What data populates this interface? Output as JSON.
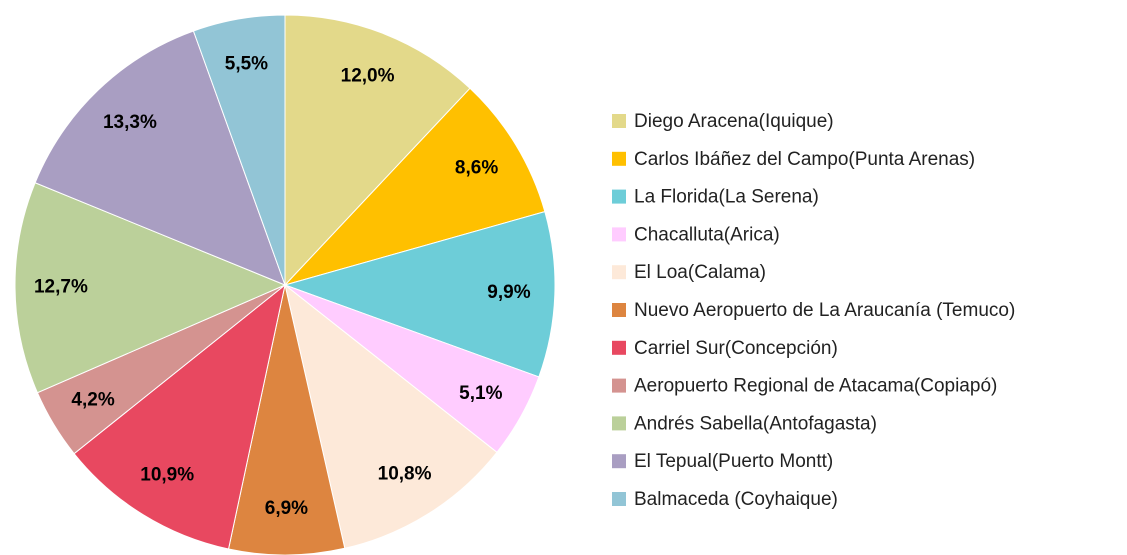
{
  "chart_data": {
    "type": "pie",
    "categories": [
      "Diego Aracena(Iquique)",
      "Carlos Ibáñez del Campo(Punta Arenas)",
      "La Florida(La Serena)",
      "Chacalluta(Arica)",
      "El Loa(Calama)",
      "Nuevo Aeropuerto de La Araucanía (Temuco)",
      "Carriel Sur(Concepción)",
      "Aeropuerto Regional de Atacama(Copiapó)",
      "Andrés Sabella(Antofagasta)",
      "El Tepual(Puerto Montt)",
      "Balmaceda (Coyhaique)"
    ],
    "values": [
      12.0,
      8.6,
      9.9,
      5.1,
      10.8,
      6.9,
      10.9,
      4.2,
      12.7,
      13.3,
      5.5
    ],
    "value_labels": [
      "12,0%",
      "8,6%",
      "9,9%",
      "5,1%",
      "10,8%",
      "6,9%",
      "10,9%",
      "4,2%",
      "12,7%",
      "13,3%",
      "5,5%"
    ],
    "colors": [
      "#e3d98a",
      "#ffc000",
      "#6dcdd8",
      "#ffccff",
      "#fde9d9",
      "#dd8540",
      "#e84860",
      "#d49390",
      "#bbd09a",
      "#a99ec2",
      "#92c5d6"
    ],
    "legend": "right"
  }
}
